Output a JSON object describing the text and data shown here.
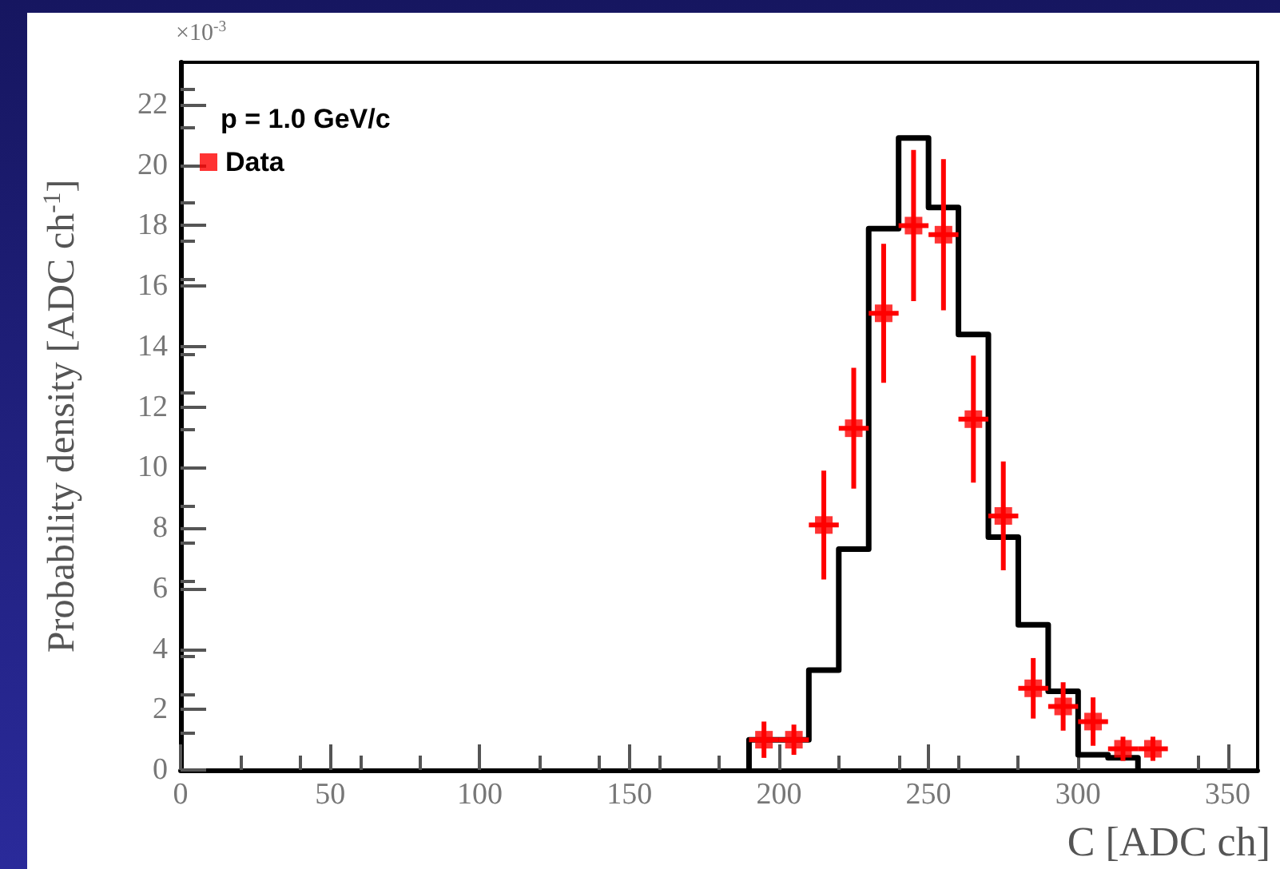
{
  "chart_data": {
    "type": "histogram",
    "xlabel": "C [ADC ch]",
    "ylabel": "Probability density [ADC ch$^{-1}$]",
    "annotations": [
      "×10$^{-3}$",
      "p = 1.0 GeV/c"
    ],
    "xlim": [
      0,
      360
    ],
    "xticks": [
      0,
      50,
      100,
      150,
      200,
      250,
      300,
      350
    ],
    "ylim": [
      0,
      23.4
    ],
    "yticks": [
      0,
      2,
      4,
      6,
      8,
      10,
      12,
      14,
      16,
      18,
      20,
      22
    ],
    "legend": "top left",
    "grid": false,
    "series": [
      {
        "color": "#000000",
        "bins": [
          190,
          200,
          210,
          220,
          230,
          240,
          250,
          260,
          270,
          280,
          290,
          300,
          310,
          320
        ],
        "values": [
          1.0,
          1.0,
          3.3,
          7.3,
          17.9,
          20.9,
          18.6,
          14.4,
          7.7,
          4.8,
          2.6,
          0.5,
          0.4
        ]
      },
      {
        "type": "scatter",
        "name": "Data",
        "color": "#ff0000",
        "marker": "square",
        "x": [
          195,
          205,
          215,
          225,
          235,
          245,
          255,
          265,
          275,
          285,
          295,
          305,
          315,
          325
        ],
        "values": [
          1.0,
          1.0,
          8.1,
          11.3,
          15.1,
          18.0,
          17.7,
          11.6,
          8.4,
          2.7,
          2.1,
          1.6,
          0.7,
          0.7
        ],
        "errors": [
          0.6,
          0.5,
          1.8,
          2.0,
          2.3,
          2.5,
          2.5,
          2.1,
          1.8,
          1.0,
          0.8,
          0.8,
          0.4,
          0.4
        ],
        "xerrors": [
          5,
          5,
          5,
          5,
          5,
          5,
          5,
          5,
          5,
          5,
          5,
          5,
          5,
          5
        ]
      }
    ]
  }
}
